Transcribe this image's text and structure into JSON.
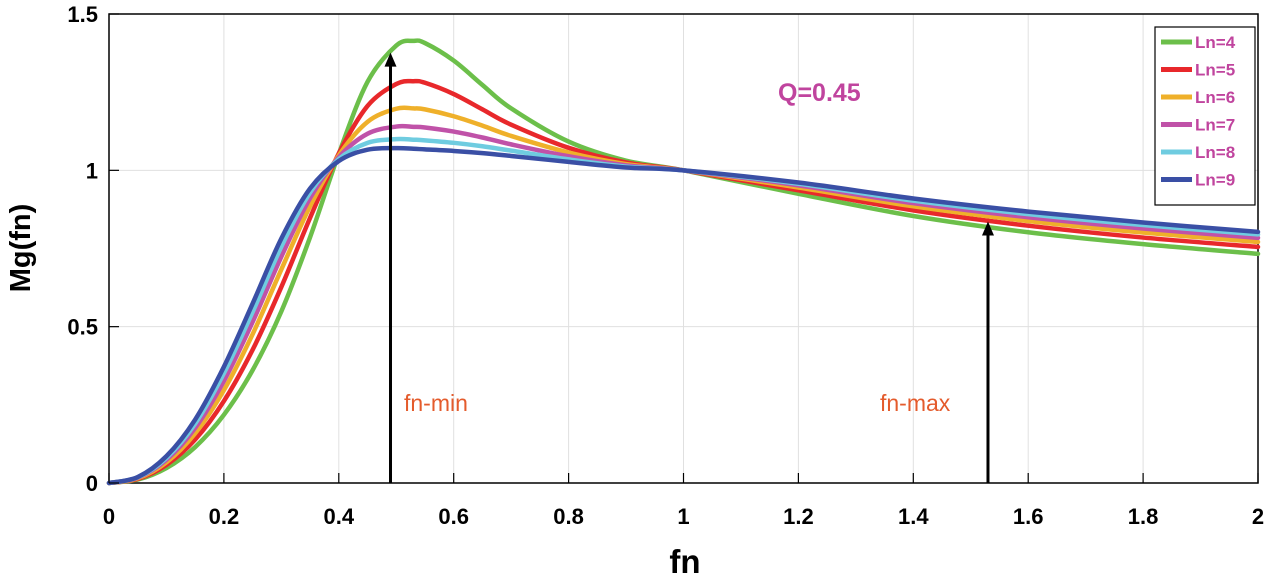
{
  "chart_data": {
    "type": "line",
    "title": "",
    "xlabel": "fn",
    "ylabel": "Mg(fn)",
    "xlim": [
      0,
      2
    ],
    "ylim": [
      0,
      1.5
    ],
    "grid": true,
    "legend_position": "top-right",
    "x_ticks": [
      0,
      0.2,
      0.4,
      0.6,
      0.8,
      1,
      1.2,
      1.4,
      1.6,
      1.8,
      2
    ],
    "x_tick_labels": [
      "0",
      "0.2",
      "0.4",
      "0.6",
      "0.8",
      "1",
      "1.2",
      "1.4",
      "1.6",
      "1.8",
      "2"
    ],
    "y_ticks": [
      0,
      0.5,
      1,
      1.5
    ],
    "y_tick_labels": [
      "0",
      "0.5",
      "1",
      "1.5"
    ],
    "x": [
      0,
      0.05,
      0.1,
      0.15,
      0.2,
      0.25,
      0.3,
      0.35,
      0.4,
      0.45,
      0.5,
      0.53,
      0.55,
      0.6,
      0.65,
      0.7,
      0.8,
      0.9,
      1,
      1.2,
      1.4,
      1.6,
      1.8,
      2
    ],
    "series": [
      {
        "name": "Ln=4",
        "color": "#6cbf4a",
        "values": [
          0,
          0.011,
          0.048,
          0.115,
          0.218,
          0.361,
          0.549,
          0.786,
          1.053,
          1.283,
          1.399,
          1.414,
          1.407,
          1.351,
          1.273,
          1.198,
          1.092,
          1.031,
          1.0,
          0.925,
          0.854,
          0.802,
          0.764,
          0.733
        ]
      },
      {
        "name": "Ln=5",
        "color": "#e8282b",
        "values": [
          0,
          0.013,
          0.058,
          0.139,
          0.262,
          0.426,
          0.627,
          0.848,
          1.054,
          1.206,
          1.276,
          1.285,
          1.28,
          1.244,
          1.195,
          1.146,
          1.072,
          1.025,
          1.0,
          0.936,
          0.872,
          0.823,
          0.785,
          0.755
        ]
      },
      {
        "name": "Ln=6",
        "color": "#efb02a",
        "values": [
          0,
          0.015,
          0.066,
          0.159,
          0.297,
          0.476,
          0.683,
          0.885,
          1.048,
          1.155,
          1.197,
          1.198,
          1.195,
          1.173,
          1.143,
          1.11,
          1.057,
          1.02,
          1.0,
          0.945,
          0.885,
          0.838,
          0.801,
          0.771
        ]
      },
      {
        "name": "Ln=7",
        "color": "#c052a8",
        "values": [
          0,
          0.017,
          0.074,
          0.176,
          0.326,
          0.515,
          0.724,
          0.911,
          1.042,
          1.117,
          1.14,
          1.139,
          1.137,
          1.124,
          1.105,
          1.083,
          1.045,
          1.016,
          1.0,
          0.952,
          0.895,
          0.85,
          0.814,
          0.784
        ]
      },
      {
        "name": "Ln=8",
        "color": "#6fcce0",
        "values": [
          0,
          0.018,
          0.08,
          0.19,
          0.351,
          0.547,
          0.756,
          0.929,
          1.036,
          1.088,
          1.1,
          1.098,
          1.096,
          1.088,
          1.077,
          1.063,
          1.035,
          1.012,
          1.0,
          0.957,
          0.903,
          0.86,
          0.825,
          0.795
        ]
      },
      {
        "name": "Ln=9",
        "color": "#3a4fa5",
        "values": [
          0,
          0.019,
          0.086,
          0.203,
          0.372,
          0.574,
          0.782,
          0.942,
          1.03,
          1.066,
          1.071,
          1.069,
          1.067,
          1.062,
          1.055,
          1.046,
          1.027,
          1.009,
          1.0,
          0.961,
          0.91,
          0.868,
          0.833,
          0.803
        ]
      }
    ],
    "annotations": [
      {
        "text": "Q=0.45",
        "color": "#c0449e"
      },
      {
        "text": "fn-min",
        "x": 0.49,
        "arrow_to_y": 1.37,
        "color": "#e45b2c"
      },
      {
        "text": "fn-max",
        "x": 1.53,
        "arrow_to_y": 0.83,
        "color": "#e45b2c"
      }
    ],
    "legend_text_color": "#c0449e"
  }
}
